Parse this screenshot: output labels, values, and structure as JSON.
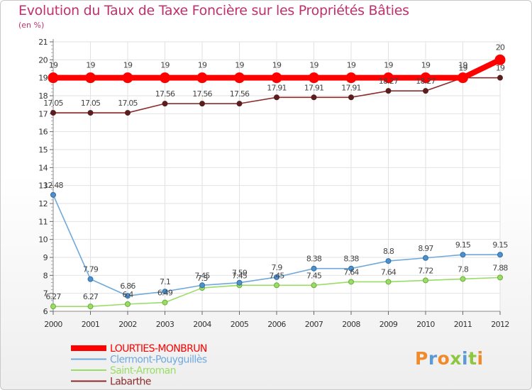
{
  "title": "Evolution du Taux de Taxe Foncière sur les Propriétés Bâties",
  "subtitle": "(en %)",
  "brand": {
    "text": "Proxiti",
    "letter_colors": [
      "#f08a2a",
      "#5b9bd5",
      "#f08a2a",
      "#8dc63f",
      "#5b9bd5",
      "#8dc63f",
      "#f08a2a"
    ]
  },
  "chart_data": {
    "type": "line",
    "x": [
      "2000",
      "2001",
      "2002",
      "2003",
      "2004",
      "2005",
      "2006",
      "2007",
      "2008",
      "2009",
      "2010",
      "2011",
      "2012"
    ],
    "ylim": [
      6,
      21
    ],
    "yticks": [
      "6",
      "7",
      "8",
      "9",
      "10",
      "11",
      "12",
      "13",
      "14",
      "15",
      "16",
      "17",
      "18",
      "19",
      "20",
      "21"
    ],
    "grid": true,
    "series": [
      {
        "name": "LOURTIES-MONBRUN",
        "color": "#ff0000",
        "values": [
          19,
          19,
          19,
          19,
          19,
          19,
          19,
          19,
          19,
          19,
          19,
          19,
          20
        ],
        "labels": [
          "19",
          "19",
          "19",
          "19",
          "19",
          "19",
          "19",
          "19",
          "19",
          "19",
          "19",
          "19",
          "20"
        ]
      },
      {
        "name": "Clermont-Pouyguillès",
        "color": "#6fa8dc",
        "values": [
          12.48,
          7.79,
          6.86,
          7.1,
          7.45,
          7.59,
          7.9,
          8.38,
          8.38,
          8.8,
          8.97,
          9.15,
          9.15
        ],
        "labels": [
          "12.48",
          "7.79",
          "6.86",
          "7.1",
          "7.45",
          "7.59",
          "7.9",
          "8.38",
          "8.38",
          "8.8",
          "8.97",
          "9.15",
          "9.15"
        ]
      },
      {
        "name": "Saint-Arroman",
        "color": "#99dd66",
        "values": [
          6.27,
          6.27,
          6.4,
          6.49,
          7.3,
          7.45,
          7.45,
          7.45,
          7.64,
          7.64,
          7.72,
          7.8,
          7.88
        ],
        "labels": [
          "6.27",
          "6.27",
          "6.4",
          "6.49",
          "7.3",
          "7.45",
          "7.45",
          "7.45",
          "7.64",
          "7.64",
          "7.72",
          "7.8",
          "7.88"
        ]
      },
      {
        "name": "Labarthe",
        "color": "#8b2c2c",
        "values": [
          17.05,
          17.05,
          17.05,
          17.56,
          17.56,
          17.56,
          17.91,
          17.91,
          17.91,
          18.27,
          18.27,
          19,
          19
        ],
        "labels": [
          "17.05",
          "17.05",
          "17.05",
          "17.56",
          "17.56",
          "17.56",
          "17.91",
          "17.91",
          "17.91",
          "18.27",
          "18.27",
          "19",
          "19"
        ]
      }
    ]
  }
}
